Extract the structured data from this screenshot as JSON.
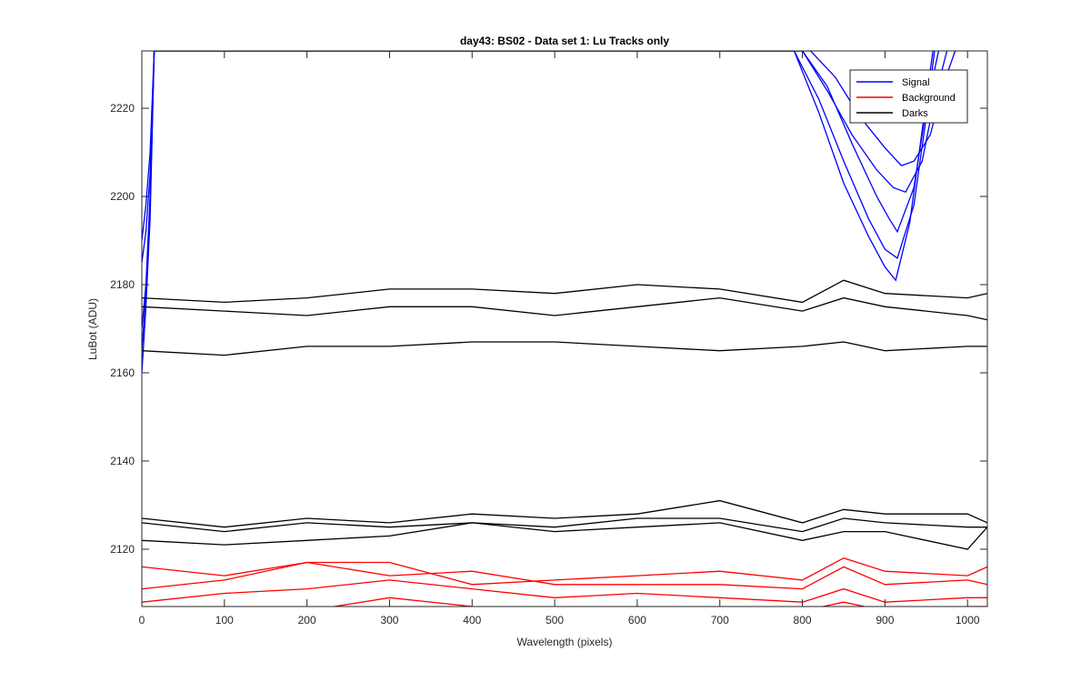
{
  "chart_data": {
    "type": "line",
    "title": "day43: BS02 - Data set 1: Lu Tracks only",
    "xlabel": "Wavelength (pixels)",
    "ylabel": "LuBot (ADU)",
    "xlim": [
      0,
      1024
    ],
    "ylim": [
      2107,
      2233
    ],
    "xticks": [
      "0",
      "100",
      "200",
      "300",
      "400",
      "500",
      "600",
      "700",
      "800",
      "900",
      "1000"
    ],
    "yticks": [
      "2120",
      "2140",
      "2160",
      "2180",
      "2200",
      "2220"
    ],
    "grid": false,
    "legend": {
      "position": "top-right",
      "entries": [
        {
          "label": "Signal",
          "color": "#0000ff"
        },
        {
          "label": "Background",
          "color": "#ff0000"
        },
        {
          "label": "Darks",
          "color": "#000000"
        }
      ]
    },
    "series": [
      {
        "group": "Signal",
        "color": "#0000ff",
        "x": [
          0,
          5,
          10,
          15,
          800,
          830,
          860,
          890,
          905,
          915,
          935,
          950,
          965
        ],
        "y": [
          2190,
          2198,
          2210,
          2233,
          2233,
          2225,
          2212,
          2200,
          2195,
          2192,
          2202,
          2220,
          2233
        ]
      },
      {
        "group": "Signal",
        "color": "#0000ff",
        "x": [
          0,
          5,
          10,
          15,
          790,
          820,
          850,
          880,
          900,
          915,
          935,
          950,
          960
        ],
        "y": [
          2185,
          2192,
          2205,
          2233,
          2233,
          2222,
          2208,
          2195,
          2188,
          2186,
          2198,
          2218,
          2233
        ]
      },
      {
        "group": "Signal",
        "color": "#0000ff",
        "x": [
          0,
          5,
          10,
          15,
          790,
          820,
          850,
          880,
          900,
          913,
          930,
          945,
          958
        ],
        "y": [
          2170,
          2180,
          2200,
          2233,
          2233,
          2219,
          2203,
          2191,
          2184,
          2181,
          2194,
          2215,
          2233
        ]
      },
      {
        "group": "Signal",
        "color": "#0000ff",
        "x": [
          0,
          5,
          10,
          15,
          800,
          830,
          860,
          890,
          910,
          925,
          945,
          960,
          975
        ],
        "y": [
          2160,
          2175,
          2195,
          2233,
          2233,
          2224,
          2214,
          2206,
          2202,
          2201,
          2208,
          2222,
          2233
        ]
      },
      {
        "group": "Signal",
        "color": "#0000ff",
        "x": [
          0,
          5,
          10,
          15,
          810,
          840,
          870,
          900,
          920,
          935,
          955,
          970,
          985
        ],
        "y": [
          2165,
          2178,
          2198,
          2233,
          2233,
          2227,
          2218,
          2211,
          2207,
          2208,
          2214,
          2225,
          2233
        ]
      },
      {
        "group": "Darks",
        "color": "#000000",
        "x": [
          0,
          100,
          200,
          300,
          400,
          500,
          600,
          700,
          800,
          850,
          900,
          1000,
          1024
        ],
        "y": [
          2177,
          2176,
          2177,
          2179,
          2179,
          2178,
          2180,
          2179,
          2176,
          2181,
          2178,
          2177,
          2178
        ]
      },
      {
        "group": "Darks",
        "color": "#000000",
        "x": [
          0,
          100,
          200,
          300,
          400,
          500,
          600,
          700,
          800,
          850,
          900,
          1000,
          1024
        ],
        "y": [
          2175,
          2174,
          2173,
          2175,
          2175,
          2173,
          2175,
          2177,
          2174,
          2177,
          2175,
          2173,
          2172
        ]
      },
      {
        "group": "Darks",
        "color": "#000000",
        "x": [
          0,
          100,
          200,
          300,
          400,
          500,
          600,
          700,
          800,
          850,
          900,
          1000,
          1024
        ],
        "y": [
          2165,
          2164,
          2166,
          2166,
          2167,
          2167,
          2166,
          2165,
          2166,
          2167,
          2165,
          2166,
          2166
        ]
      },
      {
        "group": "Darks",
        "color": "#000000",
        "x": [
          0,
          100,
          200,
          300,
          400,
          500,
          600,
          700,
          800,
          850,
          900,
          1000,
          1024
        ],
        "y": [
          2127,
          2125,
          2127,
          2126,
          2128,
          2127,
          2128,
          2131,
          2126,
          2129,
          2128,
          2128,
          2126
        ]
      },
      {
        "group": "Darks",
        "color": "#000000",
        "x": [
          0,
          100,
          200,
          300,
          400,
          500,
          600,
          700,
          800,
          850,
          900,
          1000,
          1024
        ],
        "y": [
          2126,
          2124,
          2126,
          2125,
          2126,
          2125,
          2127,
          2127,
          2124,
          2127,
          2126,
          2125,
          2125
        ]
      },
      {
        "group": "Darks",
        "color": "#000000",
        "x": [
          0,
          100,
          200,
          300,
          400,
          500,
          600,
          700,
          800,
          850,
          900,
          1000,
          1024
        ],
        "y": [
          2122,
          2121,
          2122,
          2123,
          2126,
          2124,
          2125,
          2126,
          2122,
          2124,
          2124,
          2120,
          2125
        ]
      },
      {
        "group": "Background",
        "color": "#ff0000",
        "x": [
          0,
          100,
          200,
          300,
          400,
          500,
          600,
          700,
          800,
          850,
          900,
          1000,
          1024
        ],
        "y": [
          2116,
          2114,
          2117,
          2117,
          2112,
          2113,
          2114,
          2115,
          2113,
          2118,
          2115,
          2114,
          2116
        ]
      },
      {
        "group": "Background",
        "color": "#ff0000",
        "x": [
          0,
          100,
          200,
          300,
          400,
          500,
          600,
          700,
          800,
          850,
          900,
          1000,
          1024
        ],
        "y": [
          2111,
          2113,
          2117,
          2114,
          2115,
          2112,
          2112,
          2112,
          2111,
          2116,
          2112,
          2113,
          2112
        ]
      },
      {
        "group": "Background",
        "color": "#ff0000",
        "x": [
          0,
          100,
          200,
          300,
          400,
          500,
          600,
          700,
          800,
          850,
          900,
          1000,
          1024
        ],
        "y": [
          2108,
          2110,
          2111,
          2113,
          2111,
          2109,
          2110,
          2109,
          2108,
          2111,
          2108,
          2109,
          2109
        ]
      },
      {
        "group": "Background",
        "color": "#ff0000",
        "x": [
          0,
          100,
          200,
          300,
          400,
          500,
          600,
          700,
          800,
          850,
          900,
          1000,
          1024
        ],
        "y": [
          2106,
          2107,
          2106,
          2109,
          2107,
          2106,
          2107,
          2106,
          2106,
          2108,
          2106,
          2107,
          2107
        ]
      }
    ]
  }
}
